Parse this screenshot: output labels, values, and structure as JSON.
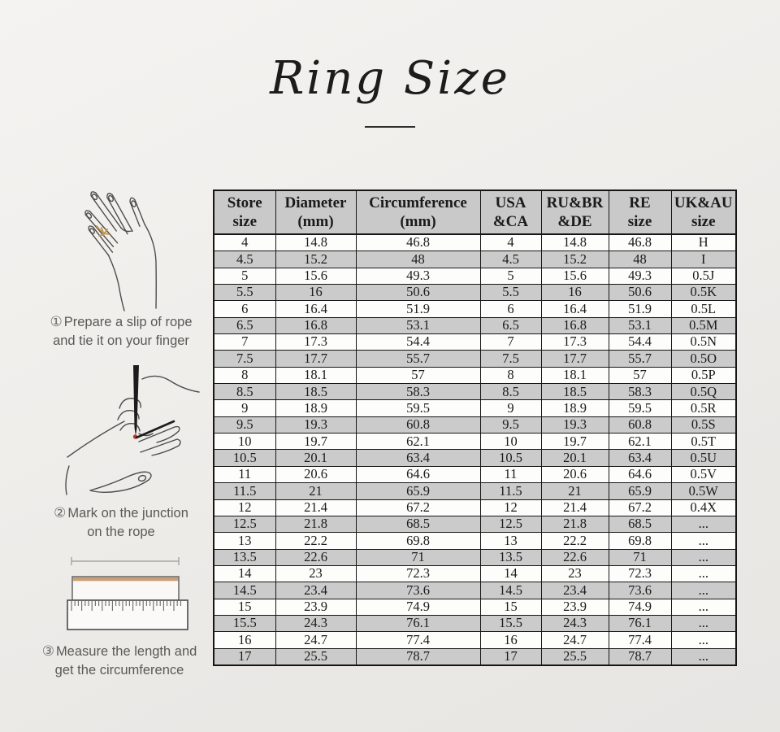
{
  "page": {
    "title": "Ring Size"
  },
  "steps": [
    {
      "num": "①",
      "line1": "Prepare a slip of rope",
      "line2": "and tie it on your finger"
    },
    {
      "num": "②",
      "line1": "Mark on the junction",
      "line2": "on the rope"
    },
    {
      "num": "③",
      "line1": "Measure the length and",
      "line2": "get the circumference"
    }
  ],
  "illustrations": [
    {
      "name": "hand-with-rope-on-finger"
    },
    {
      "name": "hand-marking-rope-with-pen"
    },
    {
      "name": "rope-measured-on-ruler"
    }
  ],
  "colors": {
    "background": "#efeeeb",
    "table_border": "#161616",
    "row_stripe": "#cbcbcb",
    "header_bg": "#c9c9c9",
    "rope_gold": "#c49757",
    "ruler_rope_tan": "#c9a077",
    "mark_red": "#c2342a",
    "step_text": "#5b5956",
    "title_text": "#1d1c1a"
  },
  "chart_data": {
    "type": "table",
    "title": "Ring Size",
    "columns": [
      "Store size",
      "Diameter (mm)",
      "Circumference (mm)",
      "USA &CA",
      "RU&BR &DE",
      "RE size",
      "UK&AU size"
    ],
    "header_lines": [
      [
        "Store",
        "size"
      ],
      [
        "Diameter",
        "(mm)"
      ],
      [
        "Circumference",
        "(mm)"
      ],
      [
        "USA",
        "&CA"
      ],
      [
        "RU&BR",
        "&DE"
      ],
      [
        "RE",
        "size"
      ],
      [
        "UK&AU",
        "size"
      ]
    ],
    "rows": [
      [
        "4",
        "14.8",
        "46.8",
        "4",
        "14.8",
        "46.8",
        "H"
      ],
      [
        "4.5",
        "15.2",
        "48",
        "4.5",
        "15.2",
        "48",
        "I"
      ],
      [
        "5",
        "15.6",
        "49.3",
        "5",
        "15.6",
        "49.3",
        "0.5J"
      ],
      [
        "5.5",
        "16",
        "50.6",
        "5.5",
        "16",
        "50.6",
        "0.5K"
      ],
      [
        "6",
        "16.4",
        "51.9",
        "6",
        "16.4",
        "51.9",
        "0.5L"
      ],
      [
        "6.5",
        "16.8",
        "53.1",
        "6.5",
        "16.8",
        "53.1",
        "0.5M"
      ],
      [
        "7",
        "17.3",
        "54.4",
        "7",
        "17.3",
        "54.4",
        "0.5N"
      ],
      [
        "7.5",
        "17.7",
        "55.7",
        "7.5",
        "17.7",
        "55.7",
        "0.5O"
      ],
      [
        "8",
        "18.1",
        "57",
        "8",
        "18.1",
        "57",
        "0.5P"
      ],
      [
        "8.5",
        "18.5",
        "58.3",
        "8.5",
        "18.5",
        "58.3",
        "0.5Q"
      ],
      [
        "9",
        "18.9",
        "59.5",
        "9",
        "18.9",
        "59.5",
        "0.5R"
      ],
      [
        "9.5",
        "19.3",
        "60.8",
        "9.5",
        "19.3",
        "60.8",
        "0.5S"
      ],
      [
        "10",
        "19.7",
        "62.1",
        "10",
        "19.7",
        "62.1",
        "0.5T"
      ],
      [
        "10.5",
        "20.1",
        "63.4",
        "10.5",
        "20.1",
        "63.4",
        "0.5U"
      ],
      [
        "11",
        "20.6",
        "64.6",
        "11",
        "20.6",
        "64.6",
        "0.5V"
      ],
      [
        "11.5",
        "21",
        "65.9",
        "11.5",
        "21",
        "65.9",
        "0.5W"
      ],
      [
        "12",
        "21.4",
        "67.2",
        "12",
        "21.4",
        "67.2",
        "0.4X"
      ],
      [
        "12.5",
        "21.8",
        "68.5",
        "12.5",
        "21.8",
        "68.5",
        "..."
      ],
      [
        "13",
        "22.2",
        "69.8",
        "13",
        "22.2",
        "69.8",
        "..."
      ],
      [
        "13.5",
        "22.6",
        "71",
        "13.5",
        "22.6",
        "71",
        "..."
      ],
      [
        "14",
        "23",
        "72.3",
        "14",
        "23",
        "72.3",
        "..."
      ],
      [
        "14.5",
        "23.4",
        "73.6",
        "14.5",
        "23.4",
        "73.6",
        "..."
      ],
      [
        "15",
        "23.9",
        "74.9",
        "15",
        "23.9",
        "74.9",
        "..."
      ],
      [
        "15.5",
        "24.3",
        "76.1",
        "15.5",
        "24.3",
        "76.1",
        "..."
      ],
      [
        "16",
        "24.7",
        "77.4",
        "16",
        "24.7",
        "77.4",
        "..."
      ],
      [
        "17",
        "25.5",
        "78.7",
        "17",
        "25.5",
        "78.7",
        "..."
      ]
    ]
  }
}
